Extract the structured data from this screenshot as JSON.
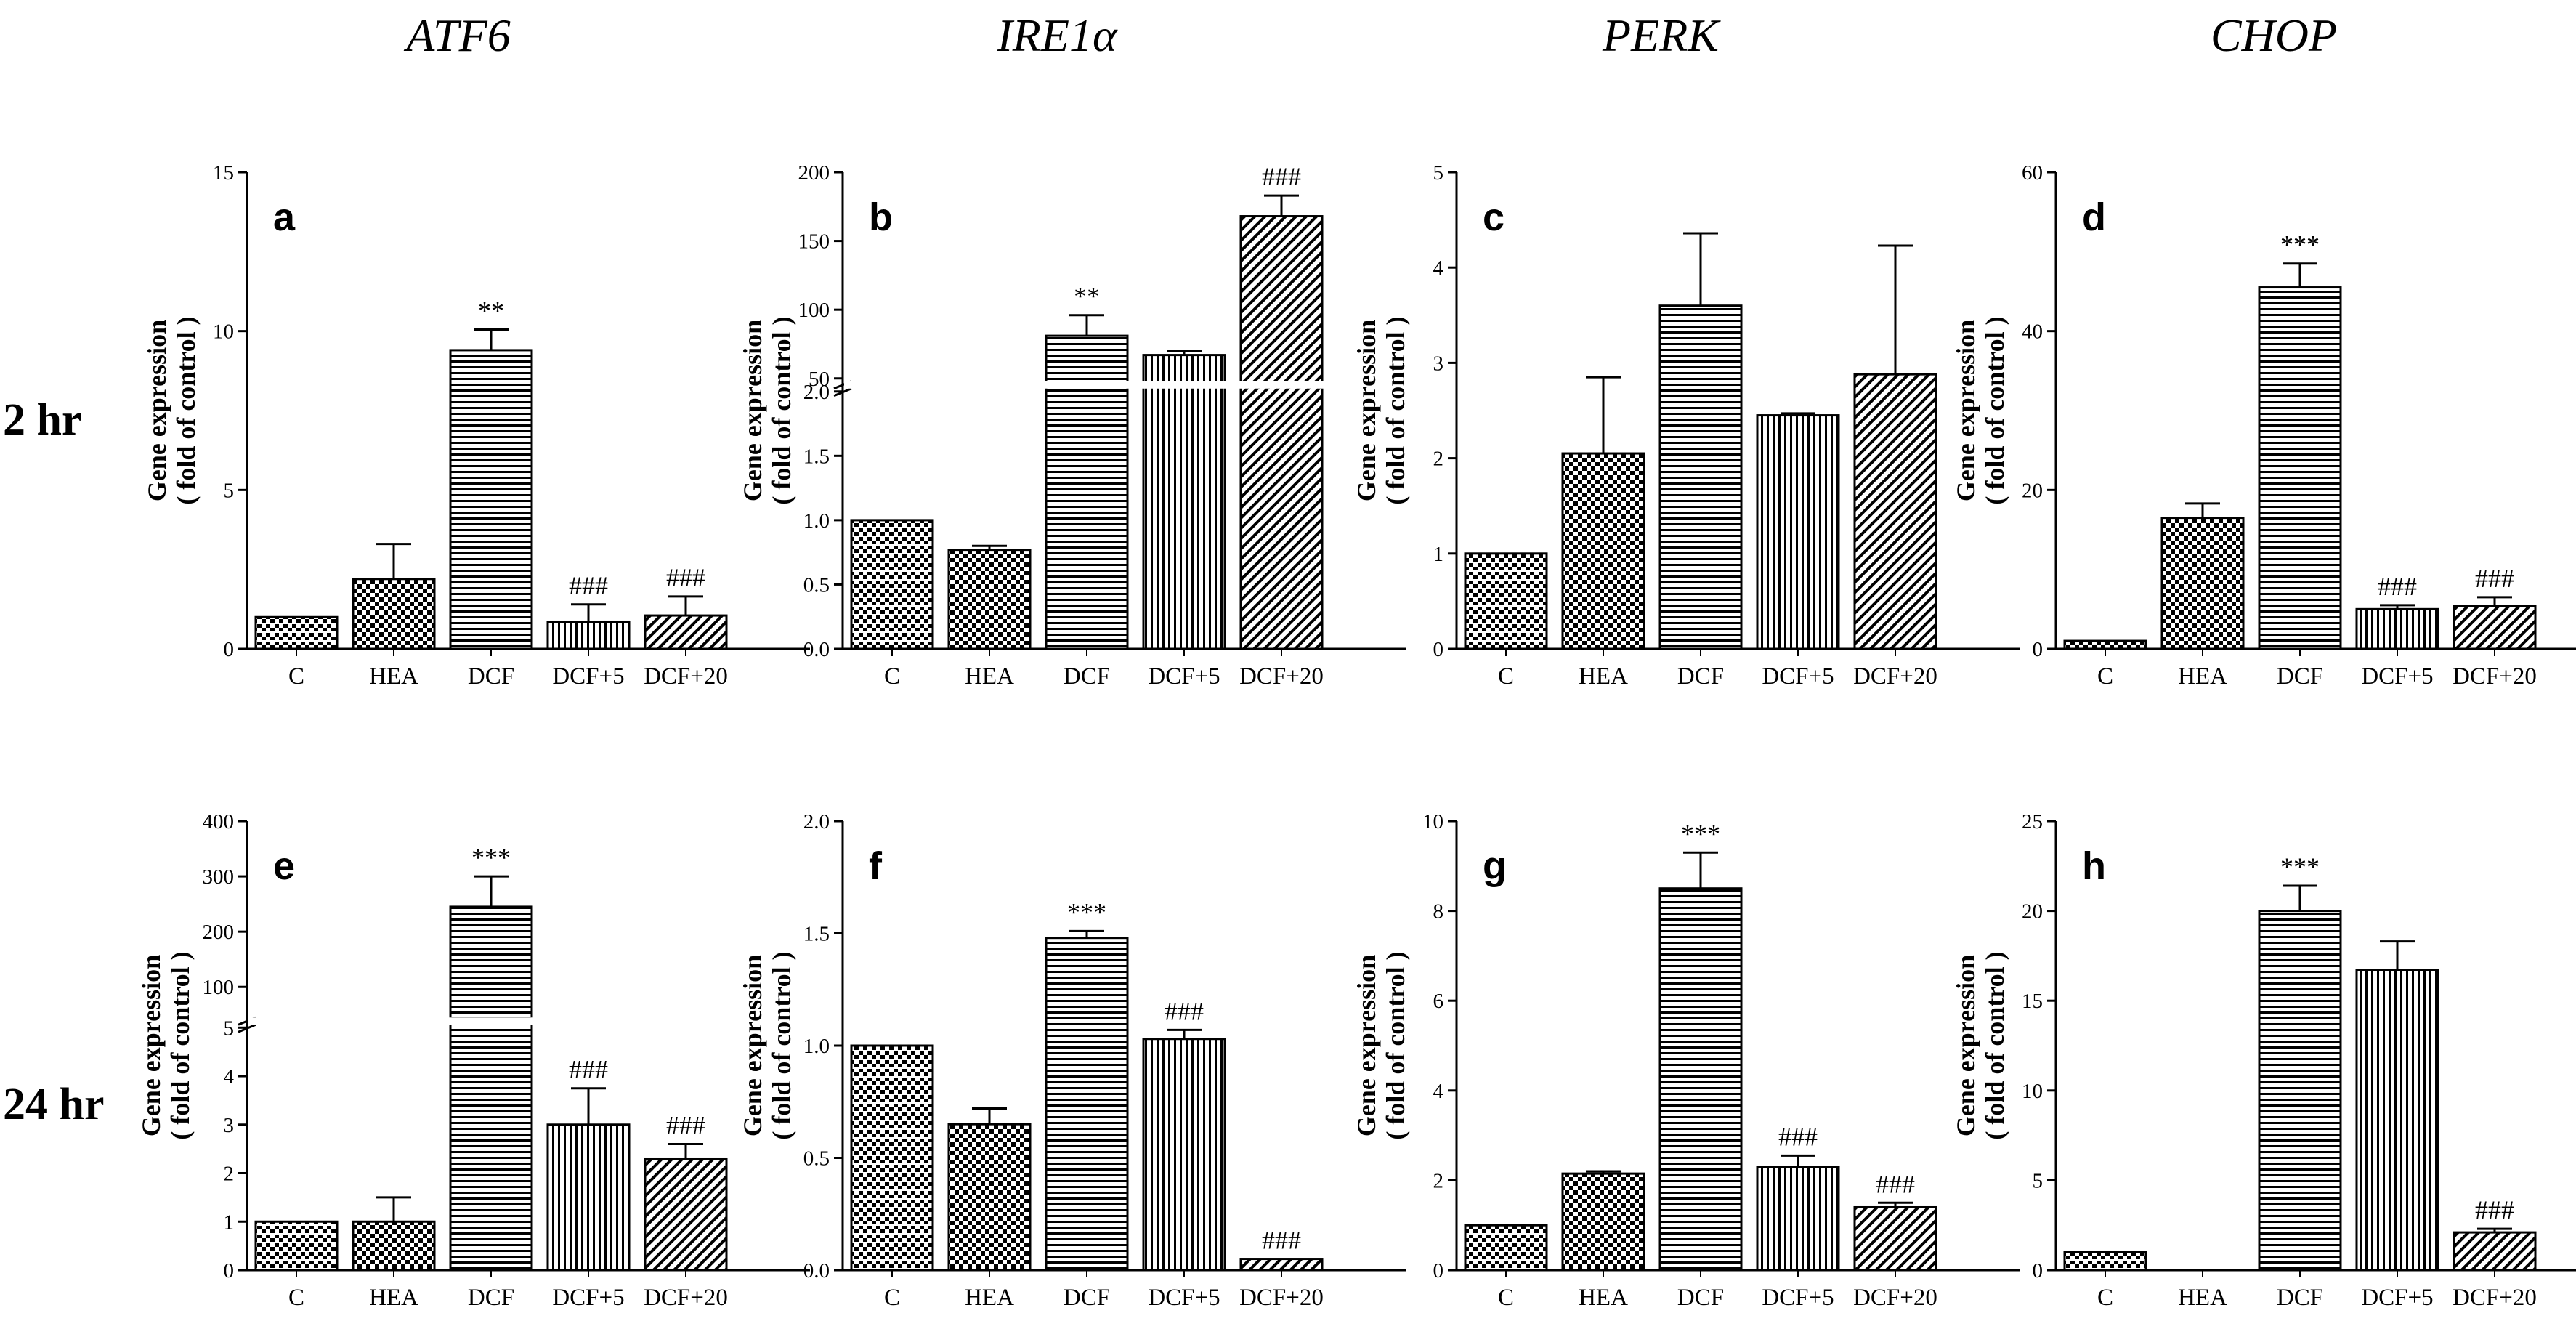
{
  "figure": {
    "gene_headers": [
      "ATF6",
      "IRE1α",
      "PERK",
      "CHOP"
    ],
    "row_labels": [
      "2 hr",
      "24 hr"
    ]
  },
  "colors": {
    "axis": "#000000",
    "bar_fill": "#ffffff",
    "pattern_line": "#000000",
    "break_fill": "#ffffff"
  },
  "chart_data": [
    {
      "panel": "a",
      "gene": "ATF6",
      "time": "2 hr",
      "type": "bar",
      "categories": [
        "C",
        "HEA",
        "DCF",
        "DCF+5",
        "DCF+20"
      ],
      "values": [
        1.0,
        2.2,
        9.4,
        0.85,
        1.05
      ],
      "errors": [
        0.0,
        1.1,
        0.65,
        0.55,
        0.6
      ],
      "annotations": [
        "",
        "",
        "**",
        "###",
        "###"
      ],
      "ylabel": "Gene expression ( fold of control )",
      "ylim": [
        0,
        15
      ],
      "yticks": [
        0,
        5,
        10,
        15
      ]
    },
    {
      "panel": "b",
      "gene": "IRE1α",
      "time": "2 hr",
      "type": "bar",
      "categories": [
        "C",
        "HEA",
        "DCF",
        "DCF+5",
        "DCF+20"
      ],
      "values": [
        1.0,
        0.77,
        81,
        67,
        168
      ],
      "errors": [
        0.0,
        0.03,
        15,
        3,
        15
      ],
      "annotations": [
        "",
        "",
        "**",
        "",
        "###"
      ],
      "ylabel": "Gene expression ( fold of control )",
      "broken_axis": true,
      "segments": [
        {
          "range": [
            0,
            2
          ],
          "ticks": [
            "0.0",
            "0.5",
            "1.0",
            "1.5",
            "2.0"
          ]
        },
        {
          "range": [
            50,
            200
          ],
          "ticks": [
            "50",
            "100",
            "150",
            "200"
          ]
        }
      ]
    },
    {
      "panel": "c",
      "gene": "PERK",
      "time": "2 hr",
      "type": "bar",
      "categories": [
        "C",
        "HEA",
        "DCF",
        "DCF+5",
        "DCF+20"
      ],
      "values": [
        1.0,
        2.05,
        3.6,
        2.45,
        2.88
      ],
      "errors": [
        0.0,
        0.8,
        0.76,
        0.02,
        1.35
      ],
      "annotations": [
        "",
        "",
        "",
        "",
        ""
      ],
      "ylabel": "Gene expression ( fold of control )",
      "ylim": [
        0,
        5
      ],
      "yticks": [
        0,
        1,
        2,
        3,
        4,
        5
      ]
    },
    {
      "panel": "d",
      "gene": "CHOP",
      "time": "2 hr",
      "type": "bar",
      "categories": [
        "C",
        "HEA",
        "DCF",
        "DCF+5",
        "DCF+20"
      ],
      "values": [
        1.0,
        16.5,
        45.5,
        5.0,
        5.4
      ],
      "errors": [
        0.0,
        1.8,
        3.0,
        0.5,
        1.1
      ],
      "annotations": [
        "",
        "",
        "***",
        "###",
        "###"
      ],
      "ylabel": "Gene expression ( fold of control )",
      "ylim": [
        0,
        60
      ],
      "yticks": [
        0,
        20,
        40,
        60
      ]
    },
    {
      "panel": "e",
      "gene": "ATF6",
      "time": "24 hr",
      "type": "bar",
      "categories": [
        "C",
        "HEA",
        "DCF",
        "DCF+5",
        "DCF+20"
      ],
      "values": [
        1.0,
        1.0,
        245,
        3.0,
        2.3
      ],
      "errors": [
        0.0,
        0.5,
        55,
        0.75,
        0.3
      ],
      "annotations": [
        "",
        "",
        "***",
        "###",
        "###"
      ],
      "ylabel": "Gene expression ( fold of control )",
      "broken_axis": true,
      "segments": [
        {
          "range": [
            0,
            5
          ],
          "ticks": [
            "0",
            "1",
            "2",
            "3",
            "4",
            "5"
          ]
        },
        {
          "range": [
            50,
            400
          ],
          "ticks": [
            "100",
            "200",
            "300",
            "400"
          ]
        }
      ]
    },
    {
      "panel": "f",
      "gene": "IRE1α",
      "time": "24 hr",
      "type": "bar",
      "categories": [
        "C",
        "HEA",
        "DCF",
        "DCF+5",
        "DCF+20"
      ],
      "values": [
        1.0,
        0.65,
        1.48,
        1.03,
        0.05
      ],
      "errors": [
        0.0,
        0.07,
        0.03,
        0.04,
        0.0
      ],
      "annotations": [
        "",
        "",
        "***",
        "###",
        "###"
      ],
      "ylabel": "Gene expression ( fold of control )",
      "ylim": [
        0,
        2.0
      ],
      "yticks": [
        "0.0",
        "0.5",
        "1.0",
        "1.5",
        "2.0"
      ]
    },
    {
      "panel": "g",
      "gene": "PERK",
      "time": "24 hr",
      "type": "bar",
      "categories": [
        "C",
        "HEA",
        "DCF",
        "DCF+5",
        "DCF+20"
      ],
      "values": [
        1.0,
        2.15,
        8.5,
        2.3,
        1.4
      ],
      "errors": [
        0.0,
        0.05,
        0.8,
        0.25,
        0.1
      ],
      "annotations": [
        "",
        "",
        "***",
        "###",
        "###"
      ],
      "ylabel": "Gene expression ( fold of control )",
      "ylim": [
        0,
        10
      ],
      "yticks": [
        0,
        2,
        4,
        6,
        8,
        10
      ]
    },
    {
      "panel": "h",
      "gene": "CHOP",
      "time": "24 hr",
      "type": "bar",
      "categories": [
        "C",
        "HEA",
        "DCF",
        "DCF+5",
        "DCF+20"
      ],
      "values": [
        1.0,
        0.0,
        20.0,
        16.7,
        2.1
      ],
      "errors": [
        0.0,
        0.0,
        1.4,
        1.6,
        0.2
      ],
      "annotations": [
        "",
        "",
        "***",
        "",
        "###"
      ],
      "ylabel": "Gene expression ( fold of control )",
      "ylim": [
        0,
        25
      ],
      "yticks": [
        0,
        5,
        10,
        15,
        20,
        25
      ]
    }
  ]
}
